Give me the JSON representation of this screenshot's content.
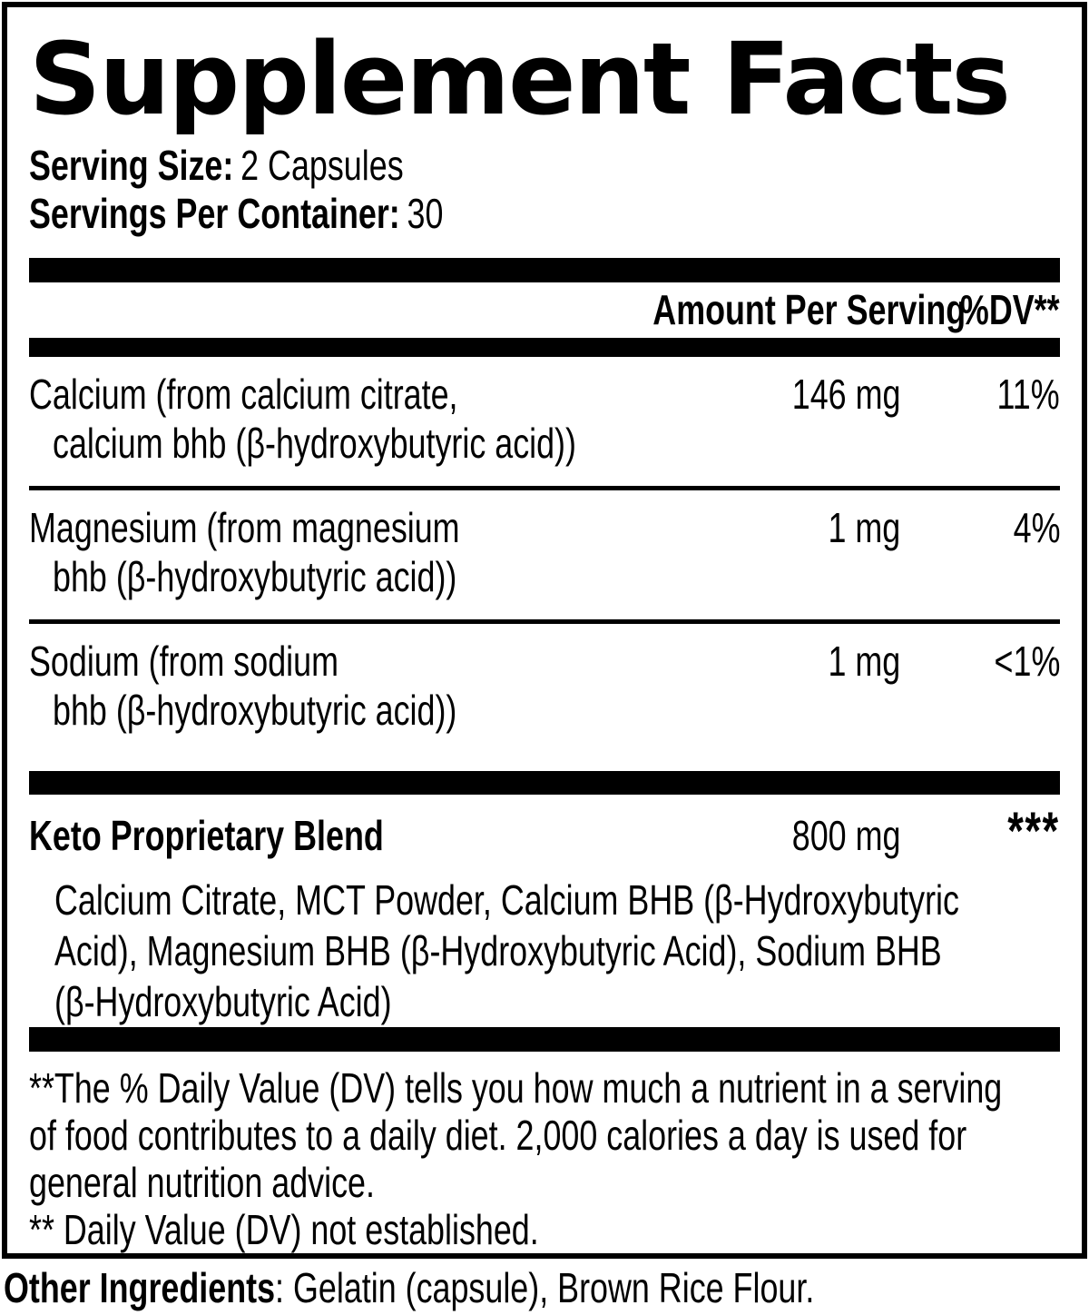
{
  "title": "Supplement Facts",
  "serving": {
    "size_label": "Serving Size:",
    "size_value": "2 Capsules",
    "container_label": "Servings Per Container:",
    "container_value": "30"
  },
  "table": {
    "amount_header": "Amount Per Serving",
    "dv_header": "%DV**",
    "rows": [
      {
        "name_line1": "Calcium (from calcium citrate,",
        "name_line2": "calcium bhb (β-hydroxybutyric acid))",
        "amount": "146 mg",
        "dv": "11%"
      },
      {
        "name_line1": "Magnesium (from magnesium",
        "name_line2": "bhb (β-hydroxybutyric acid))",
        "amount": "1 mg",
        "dv": "4%"
      },
      {
        "name_line1": "Sodium (from sodium",
        "name_line2": "bhb (β-hydroxybutyric acid))",
        "amount": "1 mg",
        "dv": "<1%"
      }
    ],
    "blend": {
      "name": "Keto Proprietary Blend",
      "amount": "800 mg",
      "dv": "***",
      "description_lines": [
        "Calcium Citrate, MCT Powder, Calcium BHB (β-Hydroxybutyric",
        "Acid), Magnesium BHB (β-Hydroxybutyric Acid), Sodium BHB",
        "(β-Hydroxybutyric Acid)"
      ]
    }
  },
  "footnotes": {
    "lines": [
      "**The % Daily Value (DV) tells you how much a nutrient in a serving",
      "of food contributes to a daily diet. 2,000 calories a day is used for",
      "general nutrition advice.",
      "** Daily Value (DV) not established."
    ]
  },
  "other_ingredients": {
    "label": "Other Ingredients",
    "value": ": Gelatin (capsule), Brown Rice Flour."
  },
  "colors": {
    "ink": "#000000",
    "background": "#ffffff"
  }
}
